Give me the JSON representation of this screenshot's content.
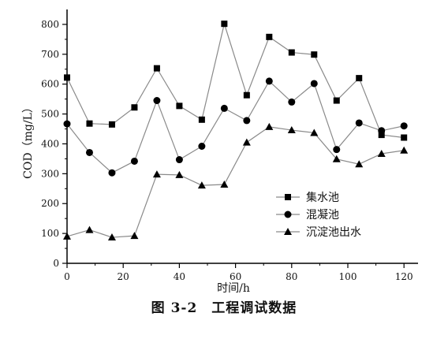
{
  "chart_data": {
    "type": "line",
    "title": "",
    "xlabel": "时间/h",
    "ylabel": "COD（mg/L）",
    "xlim": [
      0,
      125
    ],
    "ylim": [
      0,
      850
    ],
    "xticks": [
      0,
      20,
      40,
      60,
      80,
      100,
      120
    ],
    "yticks": [
      0,
      100,
      200,
      300,
      400,
      500,
      600,
      700,
      800
    ],
    "grid": false,
    "legend_position": "center-right",
    "x": [
      0,
      8,
      16,
      24,
      32,
      40,
      48,
      56,
      64,
      72,
      80,
      88,
      96,
      104,
      112,
      120
    ],
    "series": [
      {
        "name": "集水池",
        "marker": "square",
        "values": [
          622,
          468,
          465,
          522,
          653,
          527,
          481,
          802,
          563,
          758,
          706,
          699,
          545,
          620,
          430,
          421
        ]
      },
      {
        "name": "混凝池",
        "marker": "circle",
        "values": [
          467,
          371,
          303,
          342,
          545,
          347,
          392,
          519,
          478,
          610,
          540,
          602,
          381,
          470,
          444,
          460
        ]
      },
      {
        "name": "沉淀池出水",
        "marker": "triangle",
        "values": [
          90,
          112,
          87,
          92,
          298,
          296,
          261,
          264,
          405,
          457,
          446,
          437,
          349,
          332,
          367,
          378
        ]
      }
    ]
  },
  "caption": "图 3-2　工程调试数据"
}
